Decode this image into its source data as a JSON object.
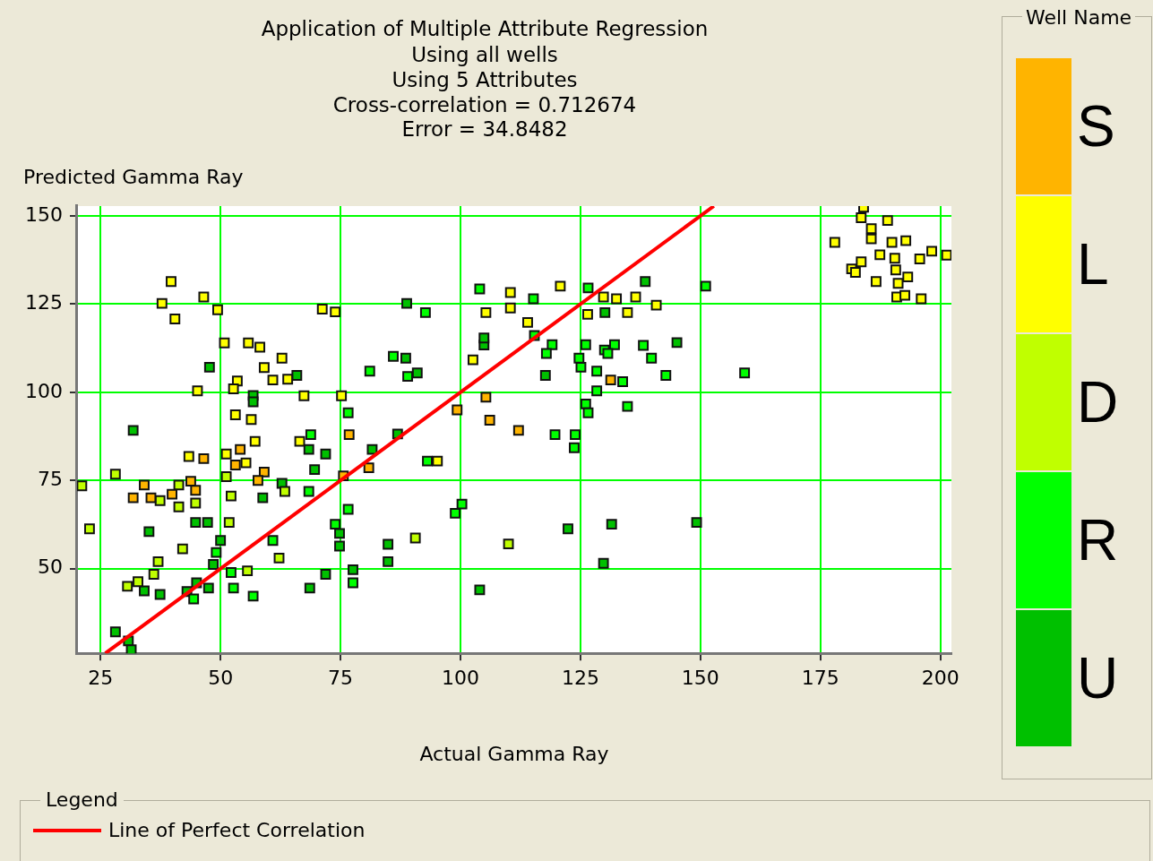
{
  "chart_data": {
    "type": "scatter",
    "title": "Application of Multiple Attribute Regression",
    "subtitle": "Using all wells\nUsing 5 Attributes\nCross-correlation = 0.712674\nError = 34.8482",
    "xlabel": "Actual Gamma Ray",
    "ylabel": "Predicted Gamma Ray",
    "legend_title": "Well Name",
    "annotations": [
      "Legend"
    ],
    "xlim": [
      20.1,
      202.3
    ],
    "ylim": [
      26,
      152.8
    ],
    "xticks": [
      25,
      50,
      75,
      100,
      125,
      150,
      175,
      200
    ],
    "yticks": [
      50,
      75,
      100,
      125,
      150
    ],
    "grid": true,
    "legend": "bottom",
    "marker": "square",
    "series": [
      {
        "name": "S",
        "color": "#ffb400",
        "x": [
          46.5,
          54.1,
          53.1,
          59.1,
          57.8,
          34.1,
          31.8,
          35.5,
          39.9,
          43.8,
          44.8,
          76.8,
          75.6,
          80.9,
          99.3,
          105.3,
          106.1,
          112.1,
          131.3
        ],
        "values": [
          81.2,
          83.8,
          79.4,
          77.4,
          75.0,
          73.7,
          70.1,
          70.1,
          71.1,
          74.8,
          72.2,
          88,
          76.3,
          78.6,
          95,
          98.6,
          92.1,
          89.2,
          103.5
        ]
      },
      {
        "name": "L",
        "color": "#ffff00",
        "x": [
          178,
          181.5,
          182.3,
          183.5,
          184,
          183.5,
          185.6,
          185.6,
          189,
          187.4,
          186.6,
          189.9,
          190.5,
          190.7,
          191.2,
          190.9,
          192.8,
          193.2,
          192.6,
          195.7,
          198.2,
          201.3,
          196,
          39.7,
          37.8,
          40.5,
          46.5,
          49.4,
          50.8,
          55.8,
          58.2,
          59.1,
          60.9,
          45.2,
          53.5,
          52.7,
          53.1,
          56.4,
          62.8,
          64,
          67.4,
          71.2,
          73.9,
          75.2,
          102.6,
          105.3,
          43.4,
          51.2,
          55.3,
          57.2,
          66.5,
          95.2,
          110.4,
          110.4,
          120.8,
          114,
          129.8,
          132.5,
          136.5,
          140.8,
          126.5,
          134.8
        ],
        "values": [
          142.5,
          135,
          134,
          137,
          152.5,
          149.5,
          146.4,
          143.5,
          148.7,
          139,
          131.4,
          142.5,
          138,
          134.7,
          130.9,
          127,
          143,
          132.7,
          127.5,
          137.8,
          140,
          138.9,
          126.5,
          131.4,
          125.2,
          120.8,
          127,
          123.4,
          114,
          114,
          112.8,
          107,
          103.5,
          100.4,
          103.2,
          101,
          93.6,
          92.3,
          109.7,
          103.7,
          99,
          123.6,
          122.8,
          99,
          109.2,
          122.6,
          81.8,
          82.5,
          80,
          86.1,
          86.1,
          80.5,
          128.3,
          123.9,
          130.1,
          119.8,
          127,
          126.5,
          127,
          124.7,
          122.1,
          122.6
        ]
      },
      {
        "name": "D",
        "color": "#c0ff00",
        "x": [
          21.1,
          28.1,
          22.7,
          41.3,
          37.4,
          41.3,
          44.8,
          51.2,
          52.2,
          51.8,
          42.1,
          37,
          36.1,
          30.6,
          32.8,
          63.4,
          62.2,
          90.6,
          110,
          55.6
        ],
        "values": [
          73.5,
          76.8,
          61.3,
          73.7,
          69.3,
          67.5,
          68.6,
          76.1,
          70.6,
          63.1,
          55.6,
          52,
          48.4,
          45,
          46.3,
          71.9,
          53,
          58.7,
          57,
          49.4
        ]
      },
      {
        "name": "R",
        "color": "#00ff00",
        "x": [
          104,
          92.7,
          86,
          81.1,
          89,
          76.6,
          68.8,
          68.4,
          76.6,
          73.9,
          77.6,
          93.1,
          100.3,
          98.9,
          60.9,
          49.1,
          52.2,
          52.7,
          56.8,
          44.4,
          126.6,
          115.2,
          115.4,
          119.1,
          117.9,
          126.1,
          124.7,
          125.1,
          128.4,
          130,
          132.1,
          130.7,
          138.1,
          139.8,
          142.8,
          133.8,
          128.4,
          126.1,
          126.6,
          134.8,
          119.7,
          123.9,
          123.7,
          159.2,
          151.1
        ],
        "values": [
          129.3,
          122.6,
          110.2,
          106,
          104.5,
          94.2,
          88,
          71.9,
          66.8,
          62.6,
          46,
          80.5,
          68.3,
          65.7,
          58,
          54.6,
          48.9,
          44.5,
          42.2,
          41.4,
          129.6,
          126.5,
          116.1,
          113.5,
          111,
          113.5,
          109.7,
          107.1,
          106,
          112,
          113.5,
          111,
          113.3,
          109.7,
          104.8,
          103,
          100.4,
          96.7,
          94.2,
          96,
          88,
          88,
          84.3,
          105.5,
          130.1
        ]
      },
      {
        "name": "U",
        "color": "#00c000",
        "x": [
          47.7,
          56.8,
          56.8,
          31.8,
          58.8,
          44.8,
          47.3,
          35.1,
          50,
          48.5,
          34.1,
          37.4,
          43,
          47.5,
          45,
          28.1,
          30.8,
          31.4,
          88.8,
          104.9,
          104.9,
          88.6,
          91,
          65.9,
          86.9,
          81.6,
          71.9,
          68.4,
          69.6,
          62.8,
          74.8,
          74.8,
          84.9,
          84.9,
          77.6,
          71.9,
          68.6,
          104,
          138.5,
          130.1,
          145.1,
          117.7,
          122.4,
          131.5,
          149.2,
          129.8
        ],
        "values": [
          107.1,
          99.1,
          97.3,
          89.2,
          70.1,
          63.1,
          63.1,
          60.5,
          58,
          51.2,
          43.7,
          42.7,
          43.5,
          44.5,
          46,
          32.1,
          29.5,
          27,
          125.2,
          113.4,
          115.4,
          109.7,
          105.5,
          104.8,
          88.2,
          83.8,
          82.5,
          83.8,
          78.1,
          74.2,
          60,
          56.4,
          56.9,
          52,
          49.7,
          48.4,
          44.5,
          44,
          131.4,
          122.6,
          114.1,
          104.8,
          61.3,
          62.6,
          63.1,
          51.5
        ]
      },
      {
        "name": "Line of Perfect Correlation",
        "type": "line",
        "color": "#ff0000",
        "marker": "none",
        "x": [
          26,
          152.8
        ],
        "values": [
          26,
          152.8
        ]
      }
    ]
  }
}
